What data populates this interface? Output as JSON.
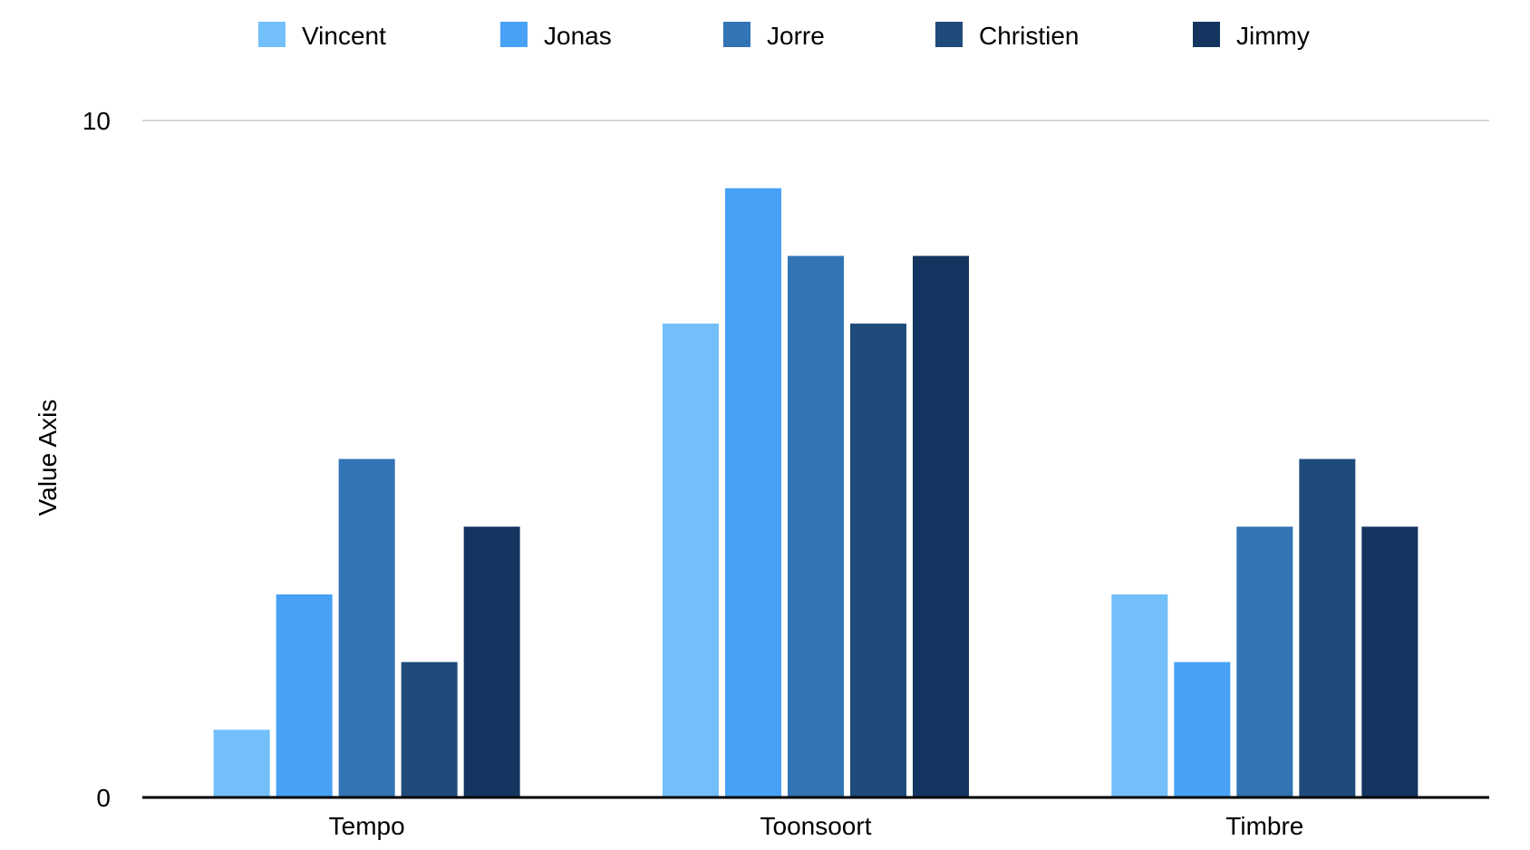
{
  "chart_data": {
    "type": "bar",
    "categories": [
      "Tempo",
      "Toonsoort",
      "Timbre"
    ],
    "series": [
      {
        "name": "Vincent",
        "color": "#72BFF9",
        "values": [
          1,
          7,
          3
        ]
      },
      {
        "name": "Jonas",
        "color": "#47A1F7",
        "values": [
          3,
          9,
          2
        ]
      },
      {
        "name": "Jorre",
        "color": "#3274B4",
        "values": [
          5,
          8,
          4
        ]
      },
      {
        "name": "Christien",
        "color": "#1F4B7B",
        "values": [
          2,
          7,
          5
        ]
      },
      {
        "name": "Jimmy",
        "color": "#14355F",
        "values": [
          4,
          8,
          4
        ]
      }
    ],
    "ylabel": "Value Axis",
    "xlabel": "",
    "ylim": [
      0,
      10
    ],
    "y_ticks": [
      "0",
      "10"
    ],
    "grid": true,
    "legend_position": "top"
  }
}
